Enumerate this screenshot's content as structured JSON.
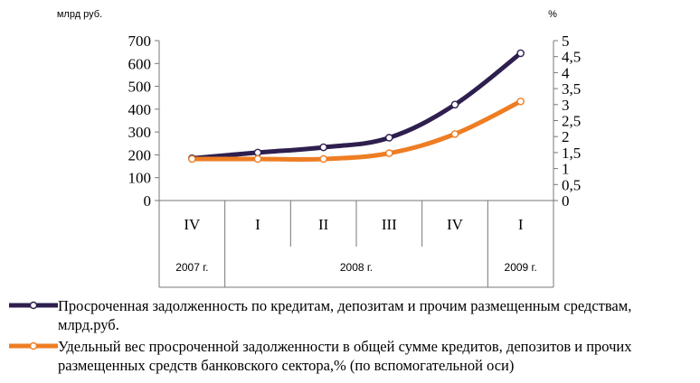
{
  "chart_data": {
    "type": "line",
    "y_unit_left": "млрд руб.",
    "y_unit_right": "%",
    "ylim_left": [
      0,
      700
    ],
    "ylim_right": [
      0,
      5
    ],
    "y_ticks_left": [
      "0",
      "100",
      "200",
      "300",
      "400",
      "500",
      "600",
      "700"
    ],
    "y_ticks_right": [
      "0",
      "0,5",
      "1",
      "1,5",
      "2",
      "2,5",
      "3",
      "3,5",
      "4",
      "4,5",
      "5"
    ],
    "categories": [
      "IV",
      "I",
      "II",
      "III",
      "IV",
      "I"
    ],
    "years": [
      {
        "label": "2007 г.",
        "span": 1
      },
      {
        "label": "2008 г.",
        "span": 4
      },
      {
        "label": "2009 г.",
        "span": 1
      }
    ],
    "grid": false,
    "legend_position": "bottom",
    "series": [
      {
        "name": "Просроченная задолженность по кредитам, депозитам и прочим размещенным средствам, млрд.руб.",
        "axis": "left",
        "color": "#2e1f4f",
        "values": [
          185,
          210,
          233,
          275,
          420,
          645
        ]
      },
      {
        "name": "Удельный вес  просроченной задолженности в общей сумме кредитов, депозитов и прочих размещенных средств банковского сектора,% (по вспомогательной оси)",
        "axis": "right",
        "color": "#ee7d23",
        "values": [
          1.3,
          1.3,
          1.3,
          1.48,
          2.08,
          3.1
        ]
      }
    ]
  }
}
